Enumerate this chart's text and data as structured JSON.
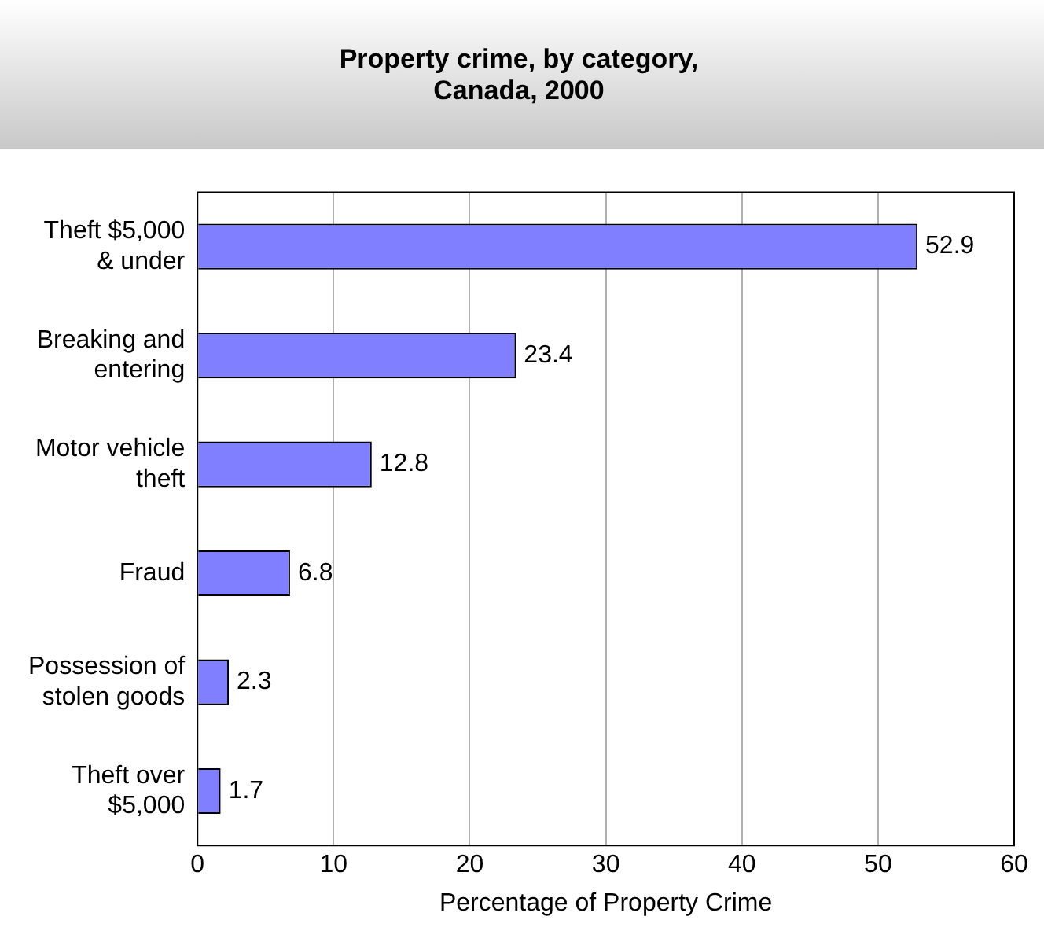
{
  "chart_data": {
    "type": "bar",
    "orientation": "horizontal",
    "title": "Property crime, by category,\nCanada, 2000",
    "xlabel": "Percentage of Property Crime",
    "categories": [
      "Theft $5,000 & under",
      "Breaking and entering",
      "Motor vehicle theft",
      "Fraud",
      "Possession of stolen goods",
      "Theft over $5,000"
    ],
    "values": [
      52.9,
      23.4,
      12.8,
      6.8,
      2.3,
      1.7
    ],
    "color": "#7f7fff",
    "xlim": [
      0,
      60
    ],
    "xticks": [
      0,
      10,
      20,
      30,
      40,
      50,
      60
    ],
    "grid": "x",
    "legend": false,
    "data_labels": true
  }
}
